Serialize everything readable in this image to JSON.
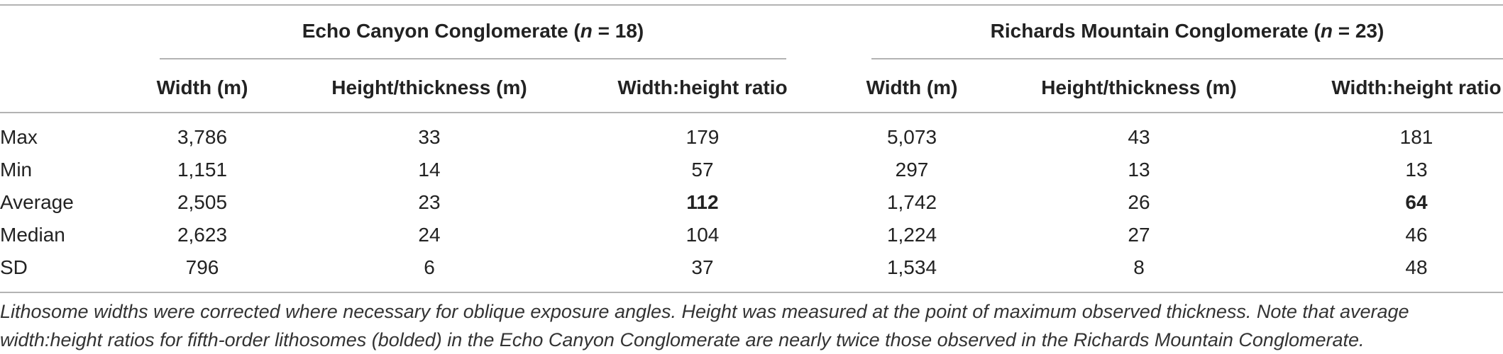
{
  "table": {
    "groups": [
      {
        "name": "Echo Canyon Conglomerate (",
        "n_symbol": "n",
        "n_value": " = 18)"
      },
      {
        "name": "Richards Mountain Conglomerate (",
        "n_symbol": "n",
        "n_value": " = 23)"
      }
    ],
    "column_headers": [
      "Width (m)",
      "Height/thickness (m)",
      "Width:height ratio",
      "Width (m)",
      "Height/thickness (m)",
      "Width:height ratio"
    ],
    "rows": [
      {
        "label": "Max",
        "values": [
          "3,786",
          "33",
          "179",
          "5,073",
          "43",
          "181"
        ]
      },
      {
        "label": "Min",
        "values": [
          "1,151",
          "14",
          "57",
          "297",
          "13",
          "13"
        ]
      },
      {
        "label": "Average",
        "values": [
          "2,505",
          "23",
          "112",
          "1,742",
          "26",
          "64"
        ]
      },
      {
        "label": "Median",
        "values": [
          "2,623",
          "24",
          "104",
          "1,224",
          "27",
          "46"
        ]
      },
      {
        "label": "SD",
        "values": [
          "796",
          "6",
          "37",
          "1,534",
          "8",
          "48"
        ]
      }
    ],
    "bolded_cells": [
      {
        "row": "Average",
        "column": "Width:height ratio",
        "group": "Echo Canyon Conglomerate"
      },
      {
        "row": "Average",
        "column": "Width:height ratio",
        "group": "Richards Mountain Conglomerate"
      }
    ]
  },
  "footnote": "Lithosome widths were corrected where necessary for oblique exposure angles. Height was measured at the point of maximum observed thickness. Note that average width:height ratios for fifth-order lithosomes (bolded) in the Echo Canyon Conglomerate are nearly twice those observed in the Richards Mountain Conglomerate."
}
